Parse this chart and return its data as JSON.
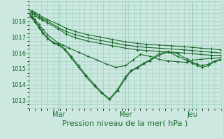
{
  "background_color": "#cce8e0",
  "plot_bg_color": "#cce8e0",
  "grid_color": "#99ccbb",
  "line_color": "#1a6b2a",
  "xlabel": "Pression niveau de la mer( hPa )",
  "xlabel_fontsize": 8,
  "ylim": [
    1012.5,
    1019.2
  ],
  "yticks": [
    1013,
    1014,
    1015,
    1016,
    1017,
    1018
  ],
  "xtick_labels": [
    "Mar",
    "Mer",
    "Jeu"
  ],
  "xtick_positions": [
    48,
    156,
    264
  ],
  "xlim": [
    0,
    310
  ],
  "series": [
    {
      "x": [
        0,
        5,
        10,
        16,
        22,
        30,
        48,
        60,
        75,
        95,
        115,
        135,
        156,
        175,
        190,
        210,
        230,
        250,
        264,
        278,
        295,
        310
      ],
      "y": [
        1018.7,
        1018.65,
        1018.55,
        1018.4,
        1018.25,
        1018.1,
        1017.8,
        1017.55,
        1017.35,
        1017.15,
        1017.0,
        1016.85,
        1016.7,
        1016.6,
        1016.55,
        1016.5,
        1016.45,
        1016.4,
        1016.35,
        1016.3,
        1016.25,
        1016.2
      ]
    },
    {
      "x": [
        0,
        5,
        10,
        16,
        22,
        30,
        48,
        60,
        75,
        95,
        115,
        135,
        156,
        175,
        190,
        210,
        230,
        250,
        264,
        278,
        295,
        310
      ],
      "y": [
        1018.6,
        1018.55,
        1018.45,
        1018.3,
        1018.15,
        1018.0,
        1017.6,
        1017.35,
        1017.15,
        1016.95,
        1016.8,
        1016.65,
        1016.5,
        1016.4,
        1016.35,
        1016.3,
        1016.25,
        1016.2,
        1016.15,
        1016.1,
        1016.05,
        1016.0
      ]
    },
    {
      "x": [
        0,
        5,
        10,
        16,
        22,
        30,
        48,
        60,
        75,
        95,
        115,
        135,
        156,
        175,
        190,
        210,
        230,
        250,
        264,
        278,
        295,
        310
      ],
      "y": [
        1018.5,
        1018.45,
        1018.35,
        1018.2,
        1018.05,
        1017.9,
        1017.5,
        1017.2,
        1016.95,
        1016.75,
        1016.6,
        1016.45,
        1016.3,
        1016.2,
        1016.15,
        1016.1,
        1016.05,
        1016.0,
        1015.95,
        1015.9,
        1015.85,
        1015.85
      ]
    },
    {
      "x": [
        0,
        5,
        10,
        16,
        22,
        30,
        48,
        55,
        65,
        80,
        95,
        110,
        125,
        140,
        156,
        168,
        180,
        195,
        210,
        225,
        240,
        255,
        264,
        278,
        295,
        310
      ],
      "y": [
        1018.45,
        1018.3,
        1018.1,
        1017.8,
        1017.5,
        1017.15,
        1016.6,
        1016.5,
        1016.3,
        1016.05,
        1015.8,
        1015.55,
        1015.3,
        1015.1,
        1015.2,
        1015.55,
        1015.9,
        1015.8,
        1015.6,
        1015.5,
        1015.45,
        1015.4,
        1015.55,
        1015.6,
        1015.65,
        1015.7
      ]
    },
    {
      "x": [
        0,
        5,
        10,
        16,
        22,
        30,
        40,
        48,
        58,
        68,
        80,
        92,
        106,
        118,
        130,
        143,
        156,
        165,
        175,
        185,
        195,
        210,
        225,
        240,
        256,
        264,
        272,
        280,
        290,
        300,
        310
      ],
      "y": [
        1018.4,
        1018.25,
        1018.0,
        1017.65,
        1017.3,
        1016.95,
        1016.65,
        1016.55,
        1016.25,
        1015.8,
        1015.2,
        1014.6,
        1014.0,
        1013.5,
        1013.1,
        1013.7,
        1014.5,
        1014.9,
        1015.1,
        1015.35,
        1015.55,
        1015.95,
        1016.1,
        1015.95,
        1015.6,
        1015.4,
        1015.3,
        1015.2,
        1015.3,
        1015.5,
        1015.6
      ]
    },
    {
      "x": [
        0,
        5,
        10,
        16,
        22,
        30,
        40,
        48,
        58,
        68,
        80,
        92,
        106,
        118,
        130,
        143,
        156,
        165,
        175,
        185,
        195,
        210,
        225,
        240,
        256,
        264,
        272,
        280,
        290,
        300,
        310
      ],
      "y": [
        1018.35,
        1018.2,
        1017.95,
        1017.6,
        1017.25,
        1016.9,
        1016.6,
        1016.5,
        1016.2,
        1015.7,
        1015.1,
        1014.5,
        1013.9,
        1013.45,
        1013.05,
        1013.6,
        1014.4,
        1014.85,
        1015.05,
        1015.3,
        1015.5,
        1015.85,
        1016.05,
        1015.8,
        1015.5,
        1015.35,
        1015.2,
        1015.1,
        1015.2,
        1015.45,
        1015.55
      ]
    }
  ]
}
